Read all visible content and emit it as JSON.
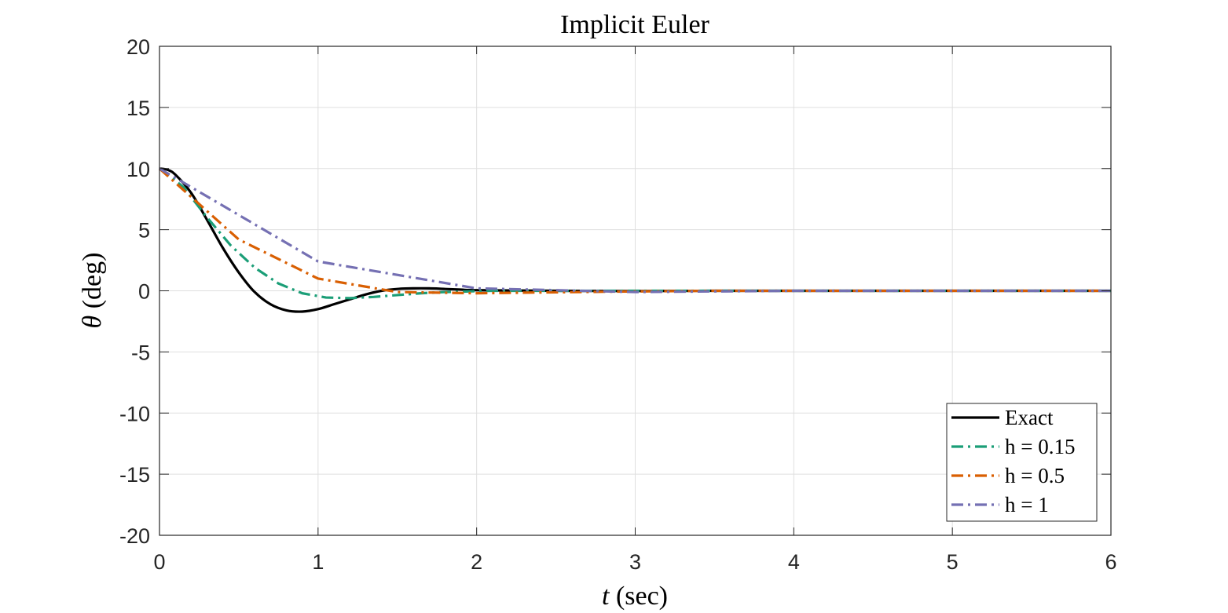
{
  "chart_data": {
    "type": "line",
    "title": "Implicit Euler",
    "xlabel_italic": "t",
    "xlabel_rest": " (sec)",
    "ylabel_italic": "θ",
    "ylabel_rest": " (deg)",
    "xlim": [
      0,
      6
    ],
    "ylim": [
      -20,
      20
    ],
    "xticks": [
      0,
      1,
      2,
      3,
      4,
      5,
      6
    ],
    "yticks": [
      -20,
      -15,
      -10,
      -5,
      0,
      5,
      10,
      15,
      20
    ],
    "grid": true,
    "legend_position": "bottom-right",
    "series": [
      {
        "name": "Exact",
        "color": "#000000",
        "dash": "solid",
        "x": [
          0,
          0.05,
          0.1,
          0.2,
          0.3,
          0.4,
          0.5,
          0.6,
          0.7,
          0.8,
          0.9,
          1.0,
          1.1,
          1.2,
          1.3,
          1.4,
          1.5,
          1.6,
          1.7,
          1.8,
          1.9,
          2.0,
          2.5,
          3.0,
          3.5,
          4.0,
          5.0,
          6.0
        ],
        "y": [
          10,
          9.9,
          9.5,
          8.0,
          5.8,
          3.5,
          1.5,
          -0.1,
          -1.1,
          -1.6,
          -1.7,
          -1.5,
          -1.1,
          -0.7,
          -0.3,
          0.0,
          0.15,
          0.2,
          0.2,
          0.15,
          0.1,
          0.05,
          0.0,
          -0.02,
          0.0,
          0.0,
          0.0,
          0.0
        ]
      },
      {
        "name": "h = 0.15",
        "color": "#1b9e77",
        "dash": "dashdot",
        "x": [
          0,
          0.15,
          0.3,
          0.45,
          0.6,
          0.75,
          0.9,
          1.05,
          1.2,
          1.35,
          1.5,
          1.65,
          1.8,
          1.95,
          2.1,
          2.5,
          3.0,
          4.0,
          5.0,
          6.0
        ],
        "y": [
          10,
          8.5,
          6.0,
          3.7,
          1.9,
          0.6,
          -0.2,
          -0.55,
          -0.6,
          -0.5,
          -0.35,
          -0.2,
          -0.1,
          -0.05,
          0.0,
          0.0,
          0.0,
          0.0,
          0.0,
          0.0
        ]
      },
      {
        "name": "h = 0.5",
        "color": "#d95f02",
        "dash": "dashdot",
        "x": [
          0,
          0.5,
          1.0,
          1.5,
          2.0,
          2.5,
          3.0,
          3.5,
          4.0,
          4.5,
          5.0,
          5.5,
          6.0
        ],
        "y": [
          10,
          4.2,
          1.0,
          -0.1,
          -0.2,
          -0.12,
          -0.05,
          0.0,
          0.0,
          0.0,
          0.0,
          0.0,
          0.0
        ]
      },
      {
        "name": "h = 1",
        "color": "#7570b3",
        "dash": "dashdot",
        "x": [
          0,
          1,
          2,
          3,
          4,
          5,
          6
        ],
        "y": [
          10,
          2.4,
          0.2,
          -0.1,
          0.0,
          0.0,
          0.0
        ]
      }
    ]
  }
}
